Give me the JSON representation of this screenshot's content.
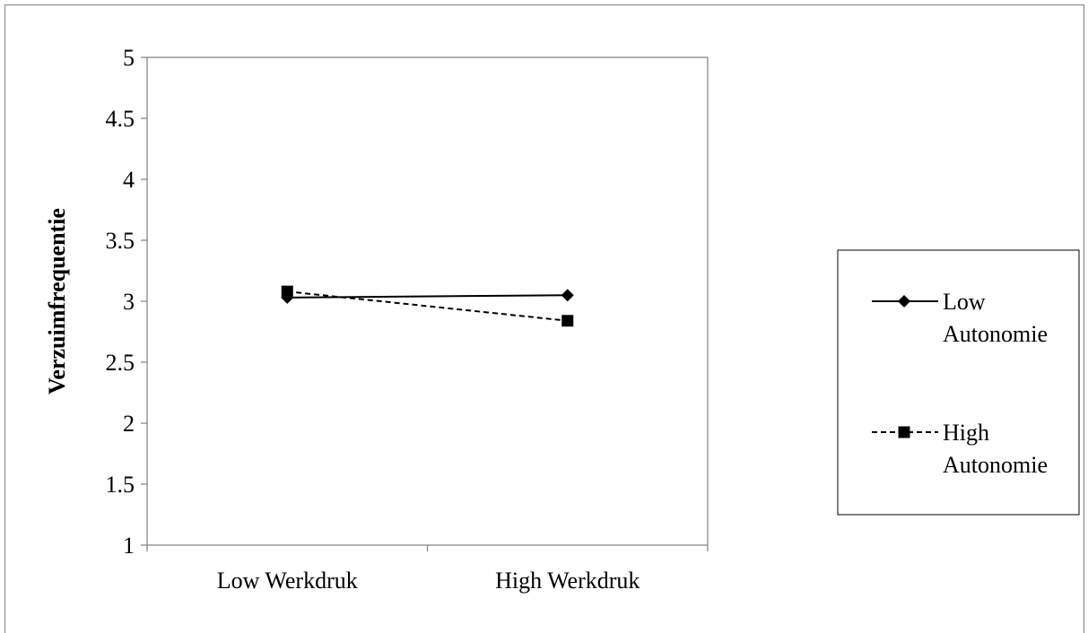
{
  "colors": {
    "axis": "#808080",
    "frame": "#808080",
    "series": "#000000",
    "background": "#ffffff"
  },
  "chart_data": {
    "type": "line",
    "title": "",
    "xlabel": "",
    "ylabel": "Verzuimfrequentie",
    "categories": [
      "Low Werkdruk",
      "High Werkdruk"
    ],
    "ylim": [
      1,
      5
    ],
    "yticks": [
      "1",
      "1.5",
      "2",
      "2.5",
      "3",
      "3.5",
      "4",
      "4.5",
      "5"
    ],
    "grid": false,
    "legend_position": "right",
    "series": [
      {
        "name_lines": [
          "Low",
          "Autonomie"
        ],
        "values": [
          3.03,
          3.05
        ],
        "marker": "diamond",
        "line_style": "solid"
      },
      {
        "name_lines": [
          "High",
          "Autonomie"
        ],
        "values": [
          3.08,
          2.84
        ],
        "marker": "square",
        "line_style": "dashed"
      }
    ]
  }
}
